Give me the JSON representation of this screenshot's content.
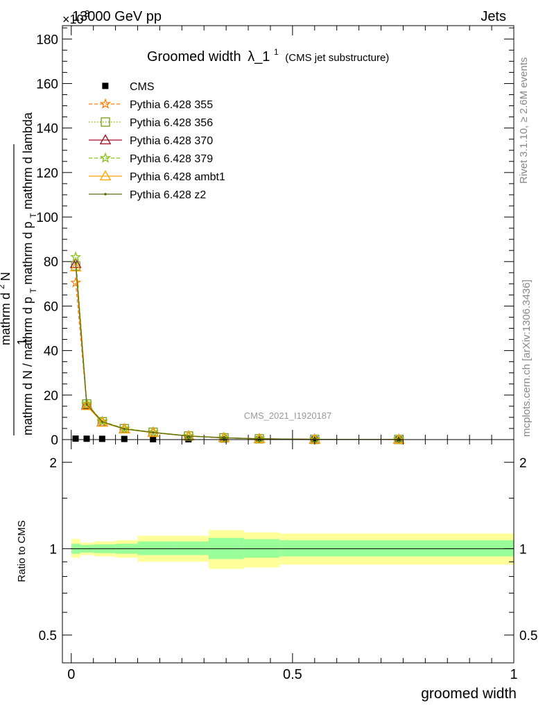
{
  "header": {
    "left": "13000 GeV pp",
    "right": "Jets",
    "exponent": "×10",
    "exponent_power": "3"
  },
  "side_text": {
    "rivet": "Rivet 3.1.10, ≥ 2.6M events",
    "mcplots": "mcplots.cern.ch [arXiv:1306.3436]"
  },
  "chart_data": [
    {
      "type": "line",
      "title": "Groomed width",
      "title_symbol": "λ_1",
      "title_sup": "1",
      "title_note": "(CMS jet substructure)",
      "watermark": "CMS_2021_I1920187",
      "ylabel_parts": {
        "lead": "mathrm d N / mathrm d p",
        "sub": "T",
        "frac_num": "1",
        "frac_den_a": "mathrm d",
        "frac_den_sup": "2",
        "frac_den_b": "N",
        "mid": "mathrm d p",
        "mid_sub": "T",
        "tail": "mathrm d lambda"
      },
      "ylim": [
        0,
        186
      ],
      "y_scale_factor": "x1000",
      "yticks": [
        0,
        20,
        40,
        60,
        80,
        100,
        120,
        140,
        160,
        180
      ],
      "xlim": [
        -0.02,
        1.0
      ],
      "legend_position": "top-left",
      "x": [
        0.01,
        0.035,
        0.07,
        0.12,
        0.185,
        0.265,
        0.345,
        0.425,
        0.55,
        0.74
      ],
      "series": [
        {
          "name": "CMS",
          "color": "#000000",
          "marker": "square",
          "values": [
            0.4,
            0.35,
            0.3,
            0.25,
            0.15,
            0.1,
            0.05,
            0.03,
            0.01,
            0.005
          ]
        },
        {
          "name": "Pythia 6.428 355",
          "color": "#ff7f0e",
          "marker": "star",
          "dash": "dashed",
          "values": [
            70.5,
            15.5,
            8.0,
            4.8,
            3.2,
            1.6,
            0.8,
            0.35,
            0.1,
            0.05
          ]
        },
        {
          "name": "Pythia 6.428 356",
          "color": "#7fa01e",
          "marker": "open-square",
          "dash": "dotted",
          "values": [
            78.0,
            16.0,
            8.0,
            4.9,
            3.3,
            1.6,
            0.8,
            0.35,
            0.1,
            0.05
          ]
        },
        {
          "name": "Pythia 6.428 370",
          "color": "#a01228",
          "marker": "open-triangle",
          "dash": "solid",
          "values": [
            79.0,
            15.5,
            7.8,
            4.8,
            3.2,
            1.6,
            0.8,
            0.35,
            0.1,
            0.05
          ]
        },
        {
          "name": "Pythia 6.428 379",
          "color": "#86c11c",
          "marker": "star",
          "dash": "dashed",
          "values": [
            82.0,
            16.2,
            8.2,
            5.0,
            3.3,
            1.7,
            0.85,
            0.35,
            0.1,
            0.05
          ]
        },
        {
          "name": "Pythia 6.428 ambt1",
          "color": "#ffa500",
          "marker": "open-triangle",
          "dash": "solid",
          "values": [
            77.5,
            15.2,
            7.7,
            4.7,
            3.1,
            1.6,
            0.8,
            0.35,
            0.1,
            0.05
          ]
        },
        {
          "name": "Pythia 6.428 z2",
          "color": "#5a6e10",
          "marker": "dot",
          "dash": "solid",
          "values": [
            79.5,
            15.8,
            8.0,
            4.8,
            3.2,
            1.6,
            0.8,
            0.35,
            0.1,
            0.05
          ]
        }
      ]
    },
    {
      "type": "area",
      "ylabel": "Ratio to CMS",
      "xlabel": "groomed width",
      "ylim": [
        0.4,
        2.4
      ],
      "y_scale": "log",
      "xlim": [
        -0.02,
        1.0
      ],
      "yticks": [
        0.5,
        1,
        2
      ],
      "xticks": [
        0,
        0.5,
        1
      ],
      "xtick_labels": [
        "0",
        "0.5",
        "1"
      ],
      "bins": [
        {
          "lo": 0.0,
          "hi": 0.02,
          "inner": [
            0.96,
            1.04
          ],
          "outer": [
            0.93,
            1.08
          ]
        },
        {
          "lo": 0.02,
          "hi": 0.05,
          "inner": [
            0.97,
            1.03
          ],
          "outer": [
            0.95,
            1.05
          ]
        },
        {
          "lo": 0.05,
          "hi": 0.1,
          "inner": [
            0.965,
            1.035
          ],
          "outer": [
            0.94,
            1.06
          ]
        },
        {
          "lo": 0.1,
          "hi": 0.15,
          "inner": [
            0.96,
            1.04
          ],
          "outer": [
            0.93,
            1.07
          ]
        },
        {
          "lo": 0.15,
          "hi": 0.23,
          "inner": [
            0.95,
            1.06
          ],
          "outer": [
            0.9,
            1.11
          ]
        },
        {
          "lo": 0.23,
          "hi": 0.31,
          "inner": [
            0.95,
            1.06
          ],
          "outer": [
            0.9,
            1.11
          ]
        },
        {
          "lo": 0.31,
          "hi": 0.39,
          "inner": [
            0.92,
            1.09
          ],
          "outer": [
            0.85,
            1.16
          ]
        },
        {
          "lo": 0.39,
          "hi": 0.47,
          "inner": [
            0.93,
            1.08
          ],
          "outer": [
            0.86,
            1.14
          ]
        },
        {
          "lo": 0.47,
          "hi": 1.0,
          "inner": [
            0.94,
            1.07
          ],
          "outer": [
            0.88,
            1.13
          ]
        }
      ]
    }
  ]
}
